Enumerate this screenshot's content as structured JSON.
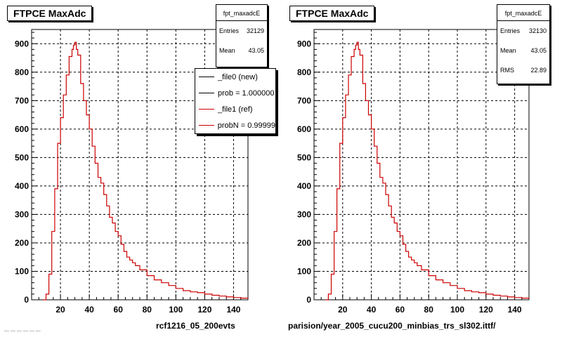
{
  "colors": {
    "hist": "#cc0000",
    "ref_line": "#000000",
    "frame": "#000000",
    "grid": "#000000"
  },
  "footer_stamp": "—  —  —  —  —  —",
  "chart_data": [
    {
      "type": "line",
      "title": "FTPCE MaxAdc",
      "xlim": [
        0,
        150
      ],
      "ylim": [
        0,
        950
      ],
      "xticks": [
        "20",
        "40",
        "60",
        "80",
        "100",
        "120",
        "140"
      ],
      "yticks": [
        "0",
        "100",
        "200",
        "300",
        "400",
        "500",
        "600",
        "700",
        "800",
        "900"
      ],
      "grid": true,
      "series": [
        {
          "name": "_file1 (ref)",
          "x": [
            8,
            10,
            12,
            14,
            16,
            18,
            20,
            22,
            24,
            26,
            28,
            29,
            30,
            31,
            32,
            34,
            36,
            38,
            40,
            42,
            44,
            46,
            48,
            50,
            52,
            54,
            56,
            58,
            60,
            62,
            64,
            66,
            68,
            70,
            72,
            75,
            80,
            85,
            90,
            95,
            100,
            105,
            110,
            115,
            120,
            125,
            130,
            135,
            140,
            145,
            150
          ],
          "values": [
            0,
            20,
            90,
            240,
            390,
            550,
            640,
            720,
            790,
            855,
            880,
            895,
            905,
            880,
            860,
            760,
            700,
            650,
            600,
            540,
            480,
            430,
            410,
            370,
            330,
            290,
            270,
            240,
            225,
            195,
            170,
            150,
            140,
            130,
            120,
            105,
            85,
            70,
            60,
            50,
            40,
            32,
            28,
            25,
            20,
            16,
            13,
            10,
            8,
            6,
            4
          ]
        }
      ],
      "stats": {
        "name": "fpt_maxadcE",
        "rows": [
          {
            "label": "Entries",
            "value": "32129"
          },
          {
            "label": "Mean",
            "value": "43.05"
          }
        ]
      },
      "legend": {
        "placement": "top-right",
        "entries": [
          {
            "label": "_file0 (new)",
            "color": "#000000"
          },
          {
            "label": "prob = 1.000000",
            "color": "#000000"
          },
          {
            "label": "_file1 (ref)",
            "color": "#cc0000"
          },
          {
            "label": "probN = 0.99999",
            "color": "#cc0000"
          }
        ]
      },
      "caption": "rcf1216_05_200evts"
    },
    {
      "type": "line",
      "title": "FTPCE MaxAdc",
      "xlim": [
        0,
        150
      ],
      "ylim": [
        0,
        950
      ],
      "xticks": [
        "20",
        "40",
        "60",
        "80",
        "100",
        "120",
        "140"
      ],
      "yticks": [
        "0",
        "100",
        "200",
        "300",
        "400",
        "500",
        "600",
        "700",
        "800",
        "900"
      ],
      "grid": true,
      "series": [
        {
          "x": [
            8,
            10,
            12,
            14,
            16,
            18,
            20,
            22,
            24,
            26,
            28,
            29,
            30,
            31,
            32,
            34,
            36,
            38,
            40,
            42,
            44,
            46,
            48,
            50,
            52,
            54,
            56,
            58,
            60,
            62,
            64,
            66,
            68,
            70,
            72,
            75,
            80,
            85,
            90,
            95,
            100,
            105,
            110,
            115,
            120,
            125,
            130,
            135,
            140,
            145,
            150
          ],
          "values": [
            0,
            20,
            90,
            240,
            390,
            550,
            640,
            720,
            790,
            855,
            880,
            895,
            905,
            880,
            860,
            760,
            700,
            650,
            600,
            540,
            480,
            430,
            410,
            370,
            330,
            290,
            270,
            240,
            225,
            195,
            170,
            150,
            140,
            130,
            120,
            105,
            85,
            70,
            60,
            50,
            40,
            32,
            28,
            25,
            20,
            16,
            13,
            10,
            8,
            6,
            4
          ]
        }
      ],
      "stats": {
        "name": "fpt_maxadcE",
        "rows": [
          {
            "label": "Entries",
            "value": "32130"
          },
          {
            "label": "Mean",
            "value": "43.05"
          },
          {
            "label": "RMS",
            "value": "22.89"
          }
        ]
      },
      "caption": "parision/year_2005_cucu200_minbias_trs_sl302.ittf/"
    }
  ]
}
